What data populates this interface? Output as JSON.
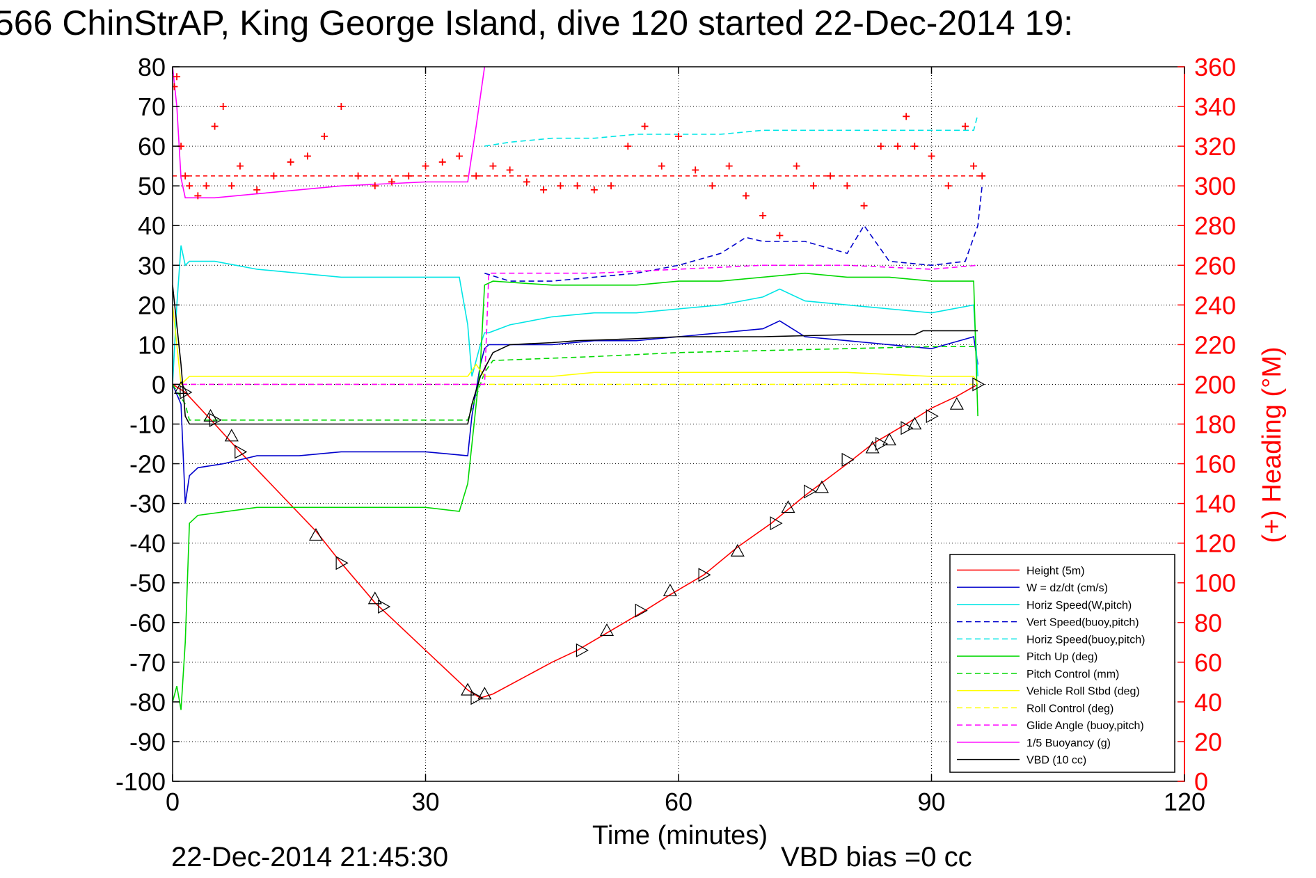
{
  "title": "566 ChinStrAP, King George Island, dive 120 started 22-Dec-2014 19:",
  "footer": {
    "date": "22-Dec-2014 21:45:30",
    "vbd_bias": "VBD bias =0 cc"
  },
  "chart_data": {
    "type": "line",
    "title": "566 ChinStrAP, King George Island, dive 120 started 22-Dec-2014 19:",
    "xlabel": "Time (minutes)",
    "ylabel_right": "(+) Heading (°M)",
    "xlim": [
      0,
      120
    ],
    "ylim": [
      -100,
      80
    ],
    "ylim_right": [
      0,
      360
    ],
    "x_ticks": [
      0,
      30,
      60,
      90,
      120
    ],
    "y_ticks": [
      80,
      70,
      60,
      50,
      40,
      30,
      20,
      10,
      0,
      -10,
      -20,
      -30,
      -40,
      -50,
      -60,
      -70,
      -80,
      -90,
      -100
    ],
    "y_right_ticks": [
      360,
      340,
      320,
      300,
      280,
      260,
      240,
      220,
      200,
      180,
      160,
      140,
      120,
      100,
      80,
      60,
      40,
      20,
      0
    ],
    "grid": true,
    "legend_position": "bottom-right",
    "colors": {
      "red": "#ff0000",
      "blue": "#0000cc",
      "cyan": "#00e5e5",
      "green": "#00d800",
      "yellow": "#ffff00",
      "magenta": "#ff00ff",
      "black": "#000000"
    },
    "series": [
      {
        "name": "Height (5m)",
        "color": "#ff0000",
        "style": "solid",
        "x": [
          0,
          1.5,
          5,
          8,
          17,
          20,
          24,
          35,
          36.5,
          38,
          41.5,
          45,
          48,
          52,
          56,
          59,
          63,
          67,
          71,
          75,
          80,
          83,
          87,
          90,
          93,
          95.5
        ],
        "y": [
          0,
          -2,
          -10,
          -17,
          -37,
          -45,
          -55,
          -77,
          -79,
          -78,
          -74,
          -70,
          -67,
          -62,
          -57,
          -53,
          -48,
          -41,
          -35,
          -28,
          -20,
          -15,
          -10,
          -6,
          -3,
          0
        ]
      },
      {
        "name": "W = dz/dt (cm/s)",
        "color": "#0000cc",
        "style": "solid",
        "x": [
          0,
          1,
          1.5,
          2,
          3,
          6,
          10,
          15,
          20,
          25,
          30,
          35,
          35.5,
          36.5,
          37,
          37.5,
          40,
          45,
          50,
          55,
          60,
          65,
          70,
          72,
          75,
          80,
          85,
          90,
          95,
          95.5
        ],
        "y": [
          0,
          -5,
          -30,
          -23,
          -21,
          -20,
          -18,
          -18,
          -17,
          -17,
          -17,
          -18,
          -8,
          5,
          9,
          10,
          10,
          10,
          11,
          11,
          12,
          13,
          14,
          16,
          12,
          11,
          10,
          9,
          12,
          5
        ]
      },
      {
        "name": "Horiz Speed(W,pitch)",
        "color": "#00e5e5",
        "style": "solid",
        "x": [
          0,
          0.5,
          1,
          1.5,
          2,
          5,
          10,
          15,
          20,
          25,
          30,
          34,
          35,
          35.5,
          36.5,
          37,
          37.5,
          40,
          45,
          50,
          55,
          60,
          65,
          70,
          72,
          75,
          80,
          85,
          90,
          95,
          95.5
        ],
        "y": [
          0,
          20,
          35,
          30,
          31,
          31,
          29,
          28,
          27,
          27,
          27,
          27,
          15,
          2,
          10,
          13,
          13,
          15,
          17,
          18,
          18,
          19,
          20,
          22,
          24,
          21,
          20,
          19,
          18,
          20,
          2
        ]
      },
      {
        "name": "Vert Speed(buoy,pitch)",
        "color": "#0000cc",
        "style": "dashed",
        "x": [
          37,
          40,
          45,
          50,
          55,
          60,
          65,
          68,
          70,
          75,
          80,
          82,
          85,
          90,
          94,
          95.5,
          96
        ],
        "y": [
          28,
          26,
          26,
          27,
          28,
          30,
          33,
          37,
          36,
          36,
          33,
          40,
          31,
          30,
          31,
          40,
          50
        ]
      },
      {
        "name": "Horiz Speed(buoy,pitch)",
        "color": "#00e5e5",
        "style": "dashed",
        "x": [
          37,
          40,
          45,
          50,
          55,
          60,
          65,
          70,
          75,
          80,
          85,
          90,
          95,
          95.5
        ],
        "y": [
          60,
          61,
          62,
          62,
          63,
          63,
          63,
          64,
          64,
          64,
          64,
          64,
          64,
          68
        ]
      },
      {
        "name": "Pitch Up (deg)",
        "color": "#00d800",
        "style": "solid",
        "x": [
          0,
          0.5,
          1,
          1.5,
          2,
          3,
          10,
          20,
          30,
          34,
          35,
          36.5,
          37,
          38,
          45,
          50,
          55,
          60,
          65,
          70,
          75,
          80,
          85,
          90,
          95,
          95.5
        ],
        "y": [
          -80,
          -76,
          -82,
          -65,
          -35,
          -33,
          -31,
          -31,
          -31,
          -32,
          -25,
          5,
          25,
          26,
          25,
          25,
          25,
          26,
          26,
          27,
          28,
          27,
          27,
          26,
          26,
          -8
        ]
      },
      {
        "name": "Pitch Control (mm)",
        "color": "#00d800",
        "style": "dashed",
        "x": [
          0,
          1.5,
          2,
          35,
          37,
          38,
          50,
          60,
          70,
          80,
          90,
          95.5
        ],
        "y": [
          0,
          -5,
          -9,
          -9,
          3,
          6,
          7,
          8,
          8.5,
          9,
          9.5,
          9.5
        ]
      },
      {
        "name": "Vehicle Roll Stbd (deg)",
        "color": "#ffff00",
        "style": "solid",
        "x": [
          0,
          1,
          2,
          5,
          10,
          20,
          30,
          35,
          36,
          37,
          38,
          45,
          50,
          60,
          70,
          80,
          90,
          95,
          95.5
        ],
        "y": [
          20,
          0,
          2,
          2,
          2,
          2,
          2,
          2,
          5,
          2,
          2,
          2,
          3,
          3,
          3,
          3,
          2,
          2,
          0
        ]
      },
      {
        "name": "Roll Control (deg)",
        "color": "#ffff00",
        "style": "dashed",
        "x": [
          0,
          95.5
        ],
        "y": [
          0,
          0
        ]
      },
      {
        "name": "Glide Angle (buoy,pitch)",
        "color": "#ff00ff",
        "style": "dashed",
        "x": [
          0,
          37,
          37.5,
          45,
          50,
          60,
          70,
          80,
          90,
          95.5
        ],
        "y": [
          0,
          0,
          28,
          28,
          28,
          29,
          30,
          30,
          29,
          30
        ]
      },
      {
        "name": "1/5 Buoyancy (g)",
        "color": "#ff00ff",
        "style": "solid",
        "x": [
          0,
          0.5,
          1,
          1.5,
          5,
          10,
          20,
          30,
          35,
          36,
          37
        ],
        "y": [
          80,
          70,
          52,
          47,
          47,
          48,
          50,
          51,
          51,
          65,
          80
        ]
      },
      {
        "name": "VBD (10 cc)",
        "color": "#000000",
        "style": "solid",
        "x": [
          0,
          1,
          1.5,
          2,
          5,
          10,
          20,
          30,
          35,
          35.5,
          36.5,
          38,
          40,
          45,
          48,
          55,
          60,
          70,
          80,
          88,
          89,
          95.5
        ],
        "y": [
          25,
          5,
          -8,
          -10,
          -10,
          -10,
          -10,
          -10,
          -10,
          -5,
          2,
          8,
          10,
          10.5,
          11,
          11.5,
          12,
          12,
          12.5,
          12.5,
          13.5,
          13.5
        ]
      }
    ],
    "heading_points": {
      "name": "(+) Heading",
      "color": "#ff0000",
      "x": [
        0.2,
        0.5,
        1,
        1.5,
        2,
        3,
        4,
        5,
        6,
        7,
        8,
        10,
        12,
        14,
        16,
        18,
        20,
        22,
        24,
        26,
        28,
        30,
        32,
        34,
        36,
        38,
        40,
        42,
        44,
        46,
        48,
        50,
        52,
        54,
        56,
        58,
        60,
        62,
        64,
        66,
        68,
        70,
        72,
        74,
        76,
        78,
        80,
        82,
        84,
        86,
        87,
        88,
        90,
        92,
        94,
        95,
        96
      ],
      "y": [
        350,
        355,
        320,
        305,
        300,
        295,
        300,
        330,
        340,
        300,
        310,
        298,
        305,
        312,
        315,
        325,
        340,
        305,
        300,
        302,
        305,
        310,
        312,
        315,
        305,
        310,
        308,
        302,
        298,
        300,
        300,
        298,
        300,
        320,
        330,
        310,
        325,
        308,
        300,
        310,
        295,
        285,
        275,
        310,
        300,
        305,
        300,
        290,
        320,
        320,
        335,
        320,
        315,
        300,
        330,
        310,
        305
      ]
    },
    "heading_ref_line": 305,
    "triangle_markers": {
      "x": [
        1,
        1.5,
        4.5,
        5,
        7,
        8,
        17,
        20,
        24,
        25,
        35,
        36,
        37,
        48.5,
        51.5,
        55.5,
        59,
        63,
        67,
        71.5,
        73,
        75.5,
        77,
        80,
        83,
        84,
        85,
        87,
        88,
        90,
        93,
        95.5
      ],
      "y": [
        -1,
        -2,
        -8,
        -9,
        -13,
        -17,
        -38,
        -45,
        -54,
        -56,
        -77,
        -79,
        -78,
        -67,
        -62,
        -57,
        -52,
        -48,
        -42,
        -35,
        -31,
        -27,
        -26,
        -19,
        -16,
        -15,
        -14,
        -11,
        -10,
        -8,
        -5,
        0
      ]
    }
  }
}
